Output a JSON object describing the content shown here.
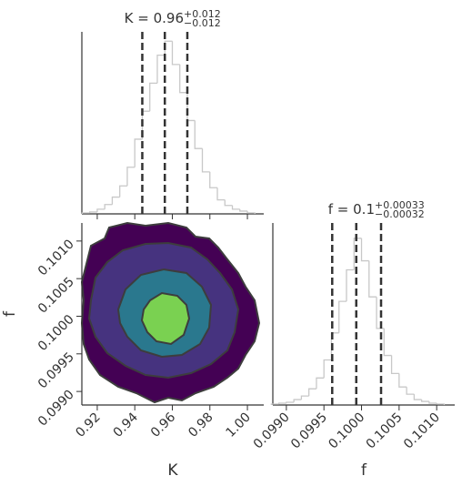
{
  "chart_data": [
    {
      "type": "histogram",
      "title": "K = 0.96",
      "title_sup": "+0.012",
      "title_sub": "−0.012",
      "bins": [
        0.912,
        0.916,
        0.92,
        0.924,
        0.928,
        0.932,
        0.936,
        0.94,
        0.944,
        0.948,
        0.952,
        0.956,
        0.96,
        0.964,
        0.968,
        0.972,
        0.976,
        0.98,
        0.984,
        0.988,
        0.992,
        0.996,
        1.0,
        1.004
      ],
      "values": [
        1,
        2,
        5,
        10,
        18,
        30,
        50,
        80,
        110,
        140,
        170,
        185,
        160,
        130,
        100,
        70,
        45,
        28,
        15,
        9,
        5,
        3,
        1
      ],
      "color": "#c8c8c8",
      "xlim": [
        0.9118,
        1.0087
      ],
      "ylim": [
        0,
        195
      ],
      "xticks": [
        0.92,
        0.94,
        0.96,
        0.98,
        1
      ],
      "quantiles": [
        0.944,
        0.956,
        0.968
      ]
    },
    {
      "type": "contour",
      "xlabel": "K",
      "ylabel": "f",
      "colors": [
        "#440154",
        "#46337f",
        "#2a788e",
        "#7ad151"
      ],
      "xlim": [
        0.9118,
        1.0087
      ],
      "ylim": [
        0.09882,
        0.10124
      ],
      "xticks": [
        0.92,
        0.94,
        0.96,
        0.98,
        {
          "value": 1,
          "label": "1.00"
        }
      ],
      "yticks": [
        {
          "value": 0.099,
          "label": "0.0990"
        },
        0.0995,
        {
          "value": 0.1,
          "label": "0.1000"
        },
        0.1005,
        {
          "value": 0.101,
          "label": "0.1010"
        }
      ]
    },
    {
      "type": "histogram",
      "title": "f = 0.1",
      "title_sup": "+0.00033",
      "title_sub": "−0.00032",
      "xlabel": "f",
      "bins": [
        0.0988,
        0.0989,
        0.099,
        0.0991,
        0.0992,
        0.0993,
        0.0994,
        0.0995,
        0.0996,
        0.0997,
        0.0998,
        0.0999,
        0.1,
        0.1001,
        0.1002,
        0.1003,
        0.1004,
        0.1005,
        0.1006,
        0.1007,
        0.1008,
        0.1009,
        0.101,
        0.1011
      ],
      "values": [
        1,
        2,
        3,
        6,
        10,
        18,
        30,
        50,
        80,
        115,
        150,
        185,
        160,
        120,
        85,
        55,
        35,
        20,
        12,
        6,
        4,
        2,
        1
      ],
      "color": "#c8c8c8",
      "xlim": [
        0.09882,
        0.10124
      ],
      "ylim": [
        0,
        202
      ],
      "xticks": [
        {
          "value": 0.099,
          "label": "0.0990"
        },
        0.0995,
        {
          "value": 0.1,
          "label": "0.1000"
        },
        0.1005,
        {
          "value": 0.101,
          "label": "0.1010"
        }
      ],
      "quantiles": [
        0.09961,
        0.09993,
        0.10026
      ]
    }
  ]
}
